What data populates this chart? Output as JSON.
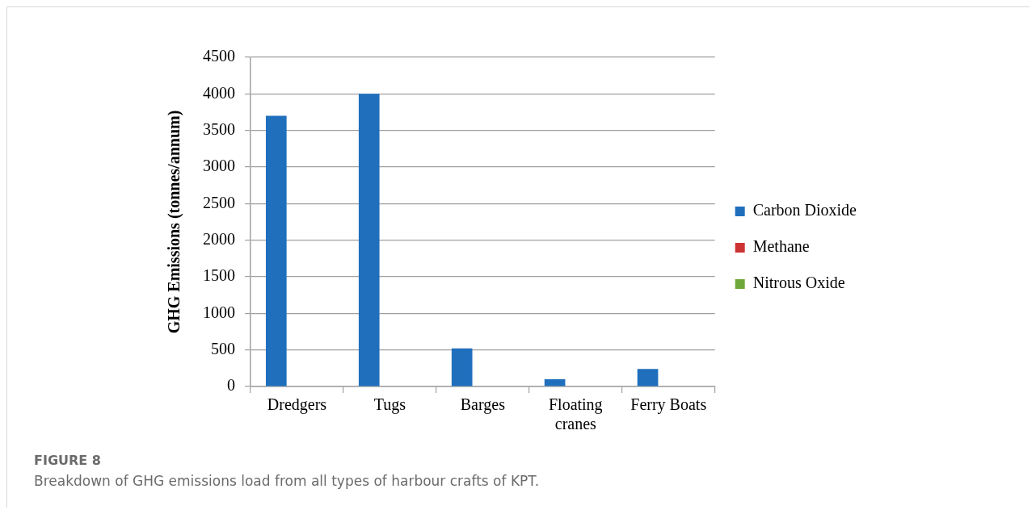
{
  "chart_data": {
    "type": "bar",
    "categories": [
      "Dredgers",
      "Tugs",
      "Barges",
      "Floating cranes",
      "Ferry Boats"
    ],
    "series": [
      {
        "name": "Carbon Dioxide",
        "color": "#1f6fbd",
        "values": [
          3700,
          4000,
          520,
          100,
          240
        ]
      },
      {
        "name": "Methane",
        "color": "#cc3333",
        "values": [
          0,
          0,
          0,
          0,
          0
        ]
      },
      {
        "name": "Nitrous Oxide",
        "color": "#6fa83a",
        "values": [
          0,
          0,
          0,
          0,
          0
        ]
      }
    ],
    "ylabel": "GHG Emissions (tonnes/annum)",
    "ylim": [
      0,
      4500
    ],
    "yticks": [
      0,
      500,
      1000,
      1500,
      2000,
      2500,
      3000,
      3500,
      4000,
      4500
    ],
    "grid": "y",
    "legend": "right",
    "annotations": [
      "FIGURE 8",
      "Breakdown of GHG emissions load from all types of harbour crafts of KPT."
    ]
  }
}
